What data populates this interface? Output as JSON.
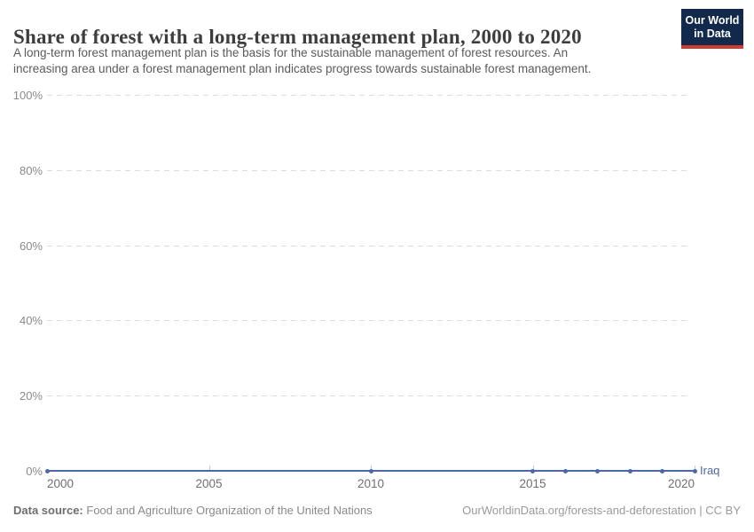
{
  "header": {
    "title": "Share of forest with a long-term management plan, 2000 to 2020",
    "subtitle_lines": [
      "A long-term forest management plan is the basis for the sustainable management of forest resources. An",
      "increasing area under a forest management plan indicates progress towards sustainable forest management."
    ],
    "logo": {
      "line1": "Our World",
      "line2": "in Data"
    }
  },
  "chart_data": {
    "type": "line",
    "title": "Share of forest with a long-term management plan, 2000 to 2020",
    "xlabel": "",
    "ylabel": "",
    "xlim": [
      2000,
      2020
    ],
    "ylim": [
      0,
      100
    ],
    "x_ticks": [
      2000,
      2005,
      2010,
      2015,
      2020
    ],
    "x_tick_marks": [
      2005,
      2010,
      2015,
      2020
    ],
    "y_ticks": [
      0,
      20,
      40,
      60,
      80,
      100
    ],
    "y_tick_labels": [
      "0%",
      "20%",
      "40%",
      "60%",
      "80%",
      "100%"
    ],
    "grid": "horizontal-dashed",
    "legend_position": "end-of-line-label",
    "series": [
      {
        "name": "Iraq",
        "color": "#4b69a8",
        "x": [
          2000,
          2010,
          2015,
          2016,
          2017,
          2018,
          2019,
          2020
        ],
        "values": [
          0,
          0,
          0,
          0,
          0,
          0,
          0,
          0
        ]
      }
    ]
  },
  "footer": {
    "datasource_label": "Data source:",
    "datasource_value": "Food and Agriculture Organization of the United Nations",
    "attribution": "OurWorldinData.org/forests-and-deforestation | CC BY"
  },
  "colors": {
    "line": "#4b69a8",
    "grid": "#dcdcdc",
    "tick": "#c8c8c8",
    "y_label_text": "#8a8a8a",
    "x_label_text": "#6f6f6f",
    "title_text": "#3d3d3d",
    "subtitle_text": "#5b5b5b",
    "logo_bg": "#12294b",
    "logo_stripe": "#cf3b31"
  }
}
